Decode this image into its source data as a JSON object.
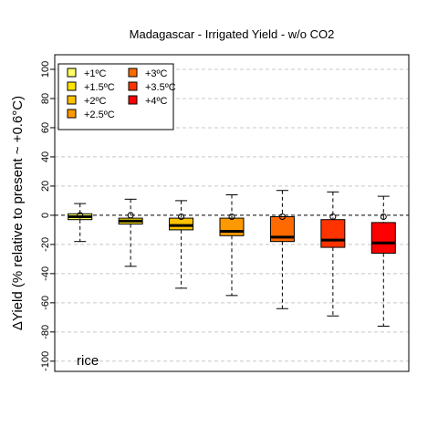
{
  "chart_data": {
    "type": "box",
    "title": "Madagascar - Irrigated Yield - w/o CO2",
    "ylabel": "ΔYield (% relative to present ~ +0.6°C)",
    "xlabel": "",
    "ylim": [
      -107,
      110
    ],
    "yticks": [
      -100,
      -80,
      -60,
      -40,
      -20,
      0,
      20,
      40,
      60,
      80,
      100
    ],
    "grid": "horizontal-dashed",
    "legend_position": "top-left",
    "annotation": "rice",
    "series": [
      {
        "name": "+1ºC",
        "color": "#ffff66",
        "min": -18,
        "q1": -3,
        "median": -1,
        "q3": 1,
        "max": 8,
        "marker": 0
      },
      {
        "name": "+1.5ºC",
        "color": "#ffe600",
        "min": -35,
        "q1": -6,
        "median": -4,
        "q3": -2,
        "max": 11,
        "marker": 0
      },
      {
        "name": "+2ºC",
        "color": "#ffc200",
        "min": -50,
        "q1": -10,
        "median": -7,
        "q3": -2,
        "max": 10,
        "marker": -1
      },
      {
        "name": "+2.5ºC",
        "color": "#ff9900",
        "min": -55,
        "q1": -14,
        "median": -11,
        "q3": -2,
        "max": 14,
        "marker": -1
      },
      {
        "name": "+3ºC",
        "color": "#ff6a00",
        "min": -64,
        "q1": -18,
        "median": -15,
        "q3": -1,
        "max": 17,
        "marker": -1
      },
      {
        "name": "+3.5ºC",
        "color": "#ff3300",
        "min": -69,
        "q1": -22,
        "median": -17,
        "q3": -3,
        "max": 16,
        "marker": -1
      },
      {
        "name": "+4ºC",
        "color": "#ff0000",
        "min": -76,
        "q1": -26,
        "median": -19,
        "q3": -5,
        "max": 13,
        "marker": -1
      }
    ]
  }
}
